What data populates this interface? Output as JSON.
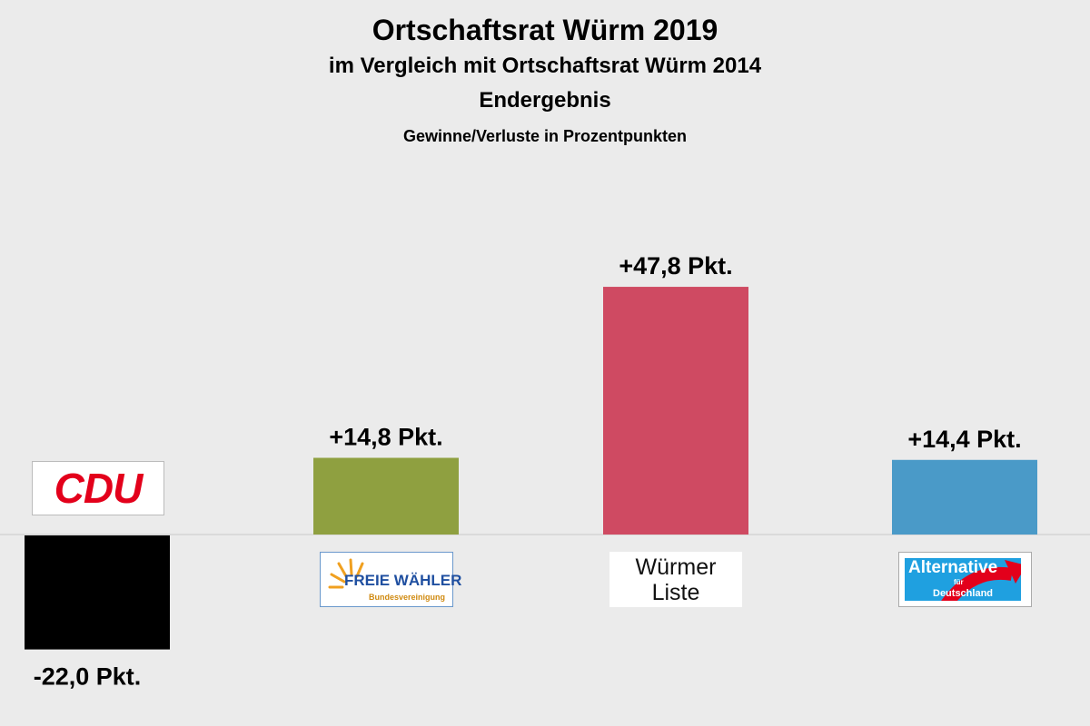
{
  "chart_data": {
    "type": "bar",
    "title": "Ortschaftsrat Würm 2019",
    "subtitle": "im Vergleich mit Ortschaftsrat Würm 2014",
    "subtitle2": "Endergebnis",
    "subtitle3": "Gewinne/Verluste in Prozentpunkten",
    "categories": [
      "CDU",
      "FREIE WÄHLER",
      "Würmer Liste",
      "Alternative für Deutschland"
    ],
    "values": [
      -22.0,
      14.8,
      47.8,
      14.4
    ],
    "data_labels": [
      "-22,0 Pkt.",
      "+14,8 Pkt.",
      "+47,8 Pkt.",
      "+14,4 Pkt."
    ],
    "colors": [
      "#000000",
      "#8fa040",
      "#cf4a62",
      "#4a9ac8"
    ],
    "xlabel": "",
    "ylabel": "",
    "ylim": [
      -25,
      55
    ],
    "grid": false
  },
  "logos": {
    "cdu": "CDU",
    "fw_main": "FREIE WÄHLER",
    "fw_sub": "Bundesvereinigung",
    "wl_line1": "Würmer",
    "wl_line2": "Liste",
    "afd_main": "Alternative",
    "afd_fuer": "für",
    "afd_de": "Deutschland"
  }
}
